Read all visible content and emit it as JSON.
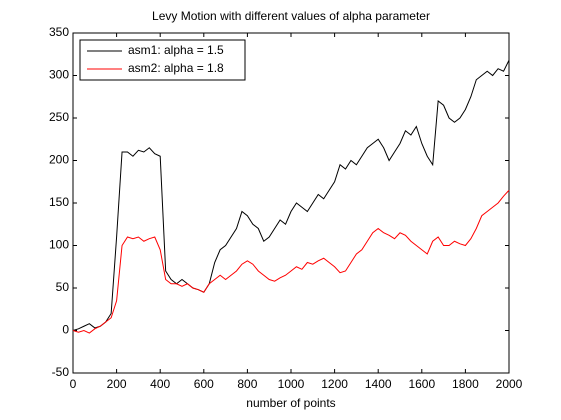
{
  "chart_data": {
    "type": "line",
    "title": "Levy Motion with different values of alpha parameter",
    "x_label": "number of points",
    "x": [
      0,
      25,
      50,
      75,
      100,
      125,
      150,
      175,
      200,
      225,
      250,
      275,
      300,
      325,
      350,
      375,
      400,
      425,
      450,
      475,
      500,
      525,
      550,
      575,
      600,
      625,
      650,
      675,
      700,
      725,
      750,
      775,
      800,
      825,
      850,
      875,
      900,
      925,
      950,
      975,
      1000,
      1025,
      1050,
      1075,
      1100,
      1125,
      1150,
      1175,
      1200,
      1225,
      1250,
      1275,
      1300,
      1325,
      1350,
      1375,
      1400,
      1425,
      1450,
      1475,
      1500,
      1525,
      1550,
      1575,
      1600,
      1625,
      1650,
      1675,
      1700,
      1725,
      1750,
      1775,
      1800,
      1825,
      1850,
      1875,
      1900,
      1925,
      1950,
      1975,
      2000
    ],
    "series": [
      {
        "name": "asm1: alpha = 1.5",
        "color": "#000000",
        "values": [
          0,
          2,
          5,
          8,
          3,
          5,
          10,
          20,
          110,
          210,
          210,
          205,
          212,
          210,
          215,
          208,
          205,
          70,
          60,
          55,
          60,
          55,
          50,
          48,
          45,
          55,
          80,
          95,
          100,
          110,
          120,
          140,
          135,
          125,
          120,
          105,
          110,
          120,
          130,
          125,
          140,
          150,
          145,
          140,
          150,
          160,
          155,
          165,
          175,
          195,
          190,
          200,
          195,
          205,
          215,
          220,
          225,
          215,
          200,
          210,
          220,
          235,
          230,
          240,
          220,
          205,
          195,
          270,
          265,
          250,
          245,
          250,
          260,
          275,
          295,
          300,
          305,
          300,
          308,
          305,
          318
        ]
      },
      {
        "name": "asm2: alpha = 1.8",
        "color": "#ff0000",
        "values": [
          0,
          -2,
          0,
          -3,
          2,
          5,
          10,
          15,
          35,
          100,
          110,
          108,
          110,
          105,
          108,
          110,
          95,
          60,
          55,
          55,
          52,
          55,
          50,
          48,
          45,
          55,
          60,
          65,
          60,
          65,
          70,
          78,
          82,
          78,
          70,
          65,
          60,
          58,
          62,
          65,
          70,
          75,
          72,
          80,
          78,
          82,
          85,
          80,
          75,
          68,
          70,
          80,
          90,
          95,
          105,
          115,
          120,
          115,
          112,
          108,
          115,
          112,
          105,
          100,
          95,
          90,
          105,
          110,
          100,
          100,
          105,
          102,
          100,
          108,
          120,
          135,
          140,
          145,
          150,
          158,
          165
        ]
      }
    ],
    "xlim": [
      0,
      2000
    ],
    "xticks": [
      0,
      200,
      400,
      600,
      800,
      1000,
      1200,
      1400,
      1600,
      1800,
      2000
    ],
    "ylim": [
      -50,
      350
    ],
    "yticks": [
      -50,
      0,
      50,
      100,
      150,
      200,
      250,
      300,
      350
    ],
    "legend": "northwest"
  }
}
